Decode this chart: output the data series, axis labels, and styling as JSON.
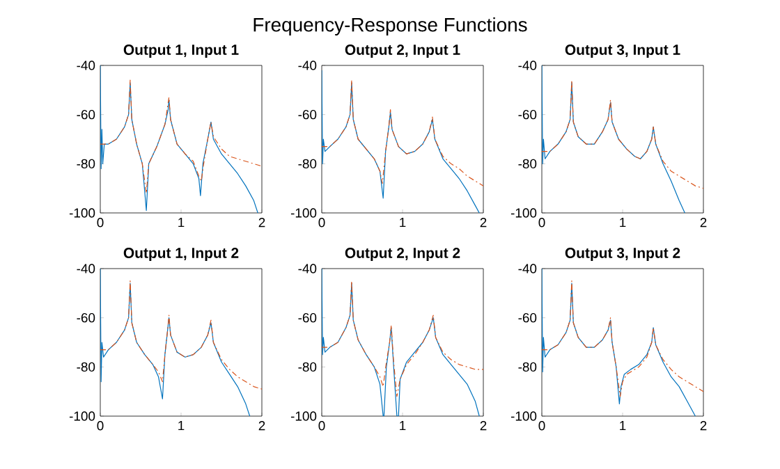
{
  "chart_data": [
    {
      "type": "line",
      "title": "Output 1, Input 1",
      "annotations": [
        "Frequency-Response Functions"
      ],
      "xlim": [
        0,
        2
      ],
      "ylim": [
        -100,
        -40
      ],
      "xticks": [
        0,
        1,
        2
      ],
      "yticks": [
        -100,
        -80,
        -60,
        -40
      ],
      "series": [
        {
          "color": "#0072bd",
          "line_style": "solid",
          "x": [
            0,
            0.01,
            0.02,
            0.03,
            0.05,
            0.1,
            0.2,
            0.3,
            0.35,
            0.37,
            0.39,
            0.45,
            0.52,
            0.57,
            0.6,
            0.7,
            0.8,
            0.84,
            0.85,
            0.87,
            0.95,
            1.05,
            1.15,
            1.22,
            1.24,
            1.27,
            1.33,
            1.37,
            1.4,
            1.5,
            1.6,
            1.7,
            1.8,
            1.9,
            1.95
          ],
          "values": [
            -40,
            -82,
            -66,
            -80,
            -72,
            -72,
            -70,
            -65,
            -60,
            -47,
            -62,
            -72,
            -80,
            -99,
            -80,
            -73,
            -64,
            -58,
            -54,
            -62,
            -72,
            -76,
            -80,
            -86,
            -93,
            -80,
            -70,
            -63,
            -70,
            -76,
            -80,
            -84,
            -89,
            -95,
            -100
          ]
        },
        {
          "color": "#d95319",
          "line_style": "dashed",
          "x": [
            0,
            0.1,
            0.2,
            0.3,
            0.35,
            0.37,
            0.39,
            0.45,
            0.52,
            0.57,
            0.6,
            0.7,
            0.8,
            0.85,
            0.87,
            0.95,
            1.05,
            1.15,
            1.22,
            1.25,
            1.28,
            1.33,
            1.37,
            1.4,
            1.5,
            1.6,
            1.7,
            1.8,
            1.9,
            2.0
          ],
          "values": [
            -72,
            -72,
            -70,
            -65,
            -60,
            -46,
            -62,
            -72,
            -80,
            -92,
            -80,
            -73,
            -64,
            -53,
            -62,
            -72,
            -76,
            -79,
            -85,
            -87,
            -80,
            -70,
            -63,
            -69,
            -74,
            -77,
            -78,
            -79,
            -80,
            -81
          ]
        }
      ]
    },
    {
      "type": "line",
      "title": "Output 2, Input 1",
      "xlim": [
        0,
        2
      ],
      "ylim": [
        -100,
        -40
      ],
      "xticks": [
        0,
        1,
        2
      ],
      "yticks": [
        -100,
        -80,
        -60,
        -40
      ],
      "series": [
        {
          "color": "#0072bd",
          "line_style": "solid",
          "x": [
            0,
            0.01,
            0.02,
            0.04,
            0.1,
            0.2,
            0.3,
            0.35,
            0.37,
            0.39,
            0.45,
            0.55,
            0.65,
            0.72,
            0.76,
            0.79,
            0.83,
            0.85,
            0.87,
            0.95,
            1.05,
            1.15,
            1.25,
            1.33,
            1.37,
            1.4,
            1.5,
            1.6,
            1.7,
            1.8,
            1.9,
            1.95
          ],
          "values": [
            -42,
            -80,
            -70,
            -75,
            -73,
            -70,
            -65,
            -60,
            -47,
            -62,
            -70,
            -74,
            -78,
            -83,
            -94,
            -75,
            -65,
            -59,
            -66,
            -73,
            -76,
            -75,
            -72,
            -67,
            -62,
            -70,
            -78,
            -82,
            -86,
            -91,
            -97,
            -100
          ]
        },
        {
          "color": "#d95319",
          "line_style": "dashed",
          "x": [
            0,
            0.1,
            0.2,
            0.3,
            0.35,
            0.37,
            0.39,
            0.45,
            0.55,
            0.65,
            0.72,
            0.75,
            0.79,
            0.83,
            0.85,
            0.87,
            0.95,
            1.05,
            1.15,
            1.25,
            1.33,
            1.37,
            1.4,
            1.5,
            1.6,
            1.7,
            1.8,
            1.9,
            2.0
          ],
          "values": [
            -73,
            -73,
            -70,
            -65,
            -60,
            -46,
            -62,
            -70,
            -74,
            -78,
            -83,
            -88,
            -75,
            -65,
            -58,
            -66,
            -73,
            -76,
            -75,
            -72,
            -67,
            -61,
            -70,
            -77,
            -80,
            -82,
            -85,
            -87,
            -89
          ]
        }
      ]
    },
    {
      "type": "line",
      "title": "Output 3, Input 1",
      "xlim": [
        0,
        2
      ],
      "ylim": [
        -100,
        -40
      ],
      "xticks": [
        0,
        1,
        2
      ],
      "yticks": [
        -100,
        -80,
        -60,
        -40
      ],
      "series": [
        {
          "color": "#0072bd",
          "line_style": "solid",
          "x": [
            0,
            0.01,
            0.02,
            0.04,
            0.1,
            0.2,
            0.3,
            0.35,
            0.37,
            0.39,
            0.45,
            0.55,
            0.65,
            0.75,
            0.82,
            0.85,
            0.87,
            0.95,
            1.05,
            1.15,
            1.22,
            1.3,
            1.36,
            1.38,
            1.41,
            1.5,
            1.6,
            1.7,
            1.77
          ],
          "values": [
            -40,
            -80,
            -70,
            -78,
            -75,
            -72,
            -67,
            -62,
            -47,
            -63,
            -69,
            -72,
            -72,
            -67,
            -62,
            -55,
            -63,
            -70,
            -74,
            -77,
            -78,
            -75,
            -70,
            -65,
            -72,
            -80,
            -87,
            -95,
            -100
          ]
        },
        {
          "color": "#d95319",
          "line_style": "dashed",
          "x": [
            0,
            0.1,
            0.2,
            0.3,
            0.35,
            0.37,
            0.39,
            0.45,
            0.55,
            0.65,
            0.75,
            0.82,
            0.85,
            0.87,
            0.95,
            1.05,
            1.15,
            1.22,
            1.3,
            1.36,
            1.38,
            1.41,
            1.5,
            1.6,
            1.7,
            1.8,
            1.9,
            2.0
          ],
          "values": [
            -75,
            -75,
            -72,
            -67,
            -62,
            -46,
            -63,
            -69,
            -72,
            -72,
            -67,
            -62,
            -54,
            -63,
            -70,
            -74,
            -77,
            -78,
            -75,
            -70,
            -65,
            -72,
            -79,
            -83,
            -85,
            -87,
            -89,
            -90
          ]
        }
      ]
    },
    {
      "type": "line",
      "title": "Output 1, Input 2",
      "xlim": [
        0,
        2
      ],
      "ylim": [
        -100,
        -40
      ],
      "xticks": [
        0,
        1,
        2
      ],
      "yticks": [
        -100,
        -80,
        -60,
        -40
      ],
      "series": [
        {
          "color": "#0072bd",
          "line_style": "solid",
          "x": [
            0,
            0.01,
            0.02,
            0.04,
            0.1,
            0.2,
            0.3,
            0.35,
            0.37,
            0.39,
            0.45,
            0.55,
            0.65,
            0.72,
            0.77,
            0.8,
            0.83,
            0.85,
            0.87,
            0.95,
            1.05,
            1.15,
            1.25,
            1.33,
            1.37,
            1.4,
            1.5,
            1.6,
            1.7,
            1.8,
            1.85
          ],
          "values": [
            -40,
            -86,
            -70,
            -76,
            -73,
            -70,
            -65,
            -60,
            -46,
            -62,
            -70,
            -75,
            -79,
            -84,
            -93,
            -75,
            -66,
            -60,
            -67,
            -74,
            -76,
            -75,
            -72,
            -67,
            -62,
            -70,
            -78,
            -83,
            -88,
            -95,
            -100
          ]
        },
        {
          "color": "#d95319",
          "line_style": "dashed",
          "x": [
            0,
            0.1,
            0.2,
            0.3,
            0.35,
            0.37,
            0.39,
            0.45,
            0.55,
            0.65,
            0.72,
            0.77,
            0.8,
            0.83,
            0.85,
            0.87,
            0.95,
            1.05,
            1.15,
            1.25,
            1.33,
            1.37,
            1.4,
            1.5,
            1.6,
            1.7,
            1.8,
            1.9,
            2.0
          ],
          "values": [
            -73,
            -73,
            -70,
            -65,
            -60,
            -45,
            -62,
            -70,
            -75,
            -79,
            -82,
            -86,
            -75,
            -66,
            -59,
            -67,
            -74,
            -76,
            -75,
            -72,
            -67,
            -61,
            -70,
            -77,
            -81,
            -84,
            -86,
            -88,
            -89
          ]
        }
      ]
    },
    {
      "type": "line",
      "title": "Output 2, Input 2",
      "xlim": [
        0,
        2
      ],
      "ylim": [
        -100,
        -40
      ],
      "xticks": [
        0,
        1,
        2
      ],
      "yticks": [
        -100,
        -80,
        -60,
        -40
      ],
      "series": [
        {
          "color": "#0072bd",
          "line_style": "solid",
          "x": [
            0,
            0.01,
            0.02,
            0.04,
            0.1,
            0.2,
            0.3,
            0.35,
            0.37,
            0.39,
            0.45,
            0.55,
            0.65,
            0.72,
            0.76,
            0.77,
            0.8,
            0.84,
            0.86,
            0.89,
            0.93,
            0.95,
            0.97,
            1.05,
            1.15,
            1.25,
            1.33,
            1.38,
            1.41,
            1.5,
            1.6,
            1.7,
            1.8,
            1.9,
            1.95
          ],
          "values": [
            -40,
            -75,
            -68,
            -74,
            -72,
            -70,
            -64,
            -59,
            -46,
            -61,
            -69,
            -75,
            -80,
            -87,
            -100,
            -100,
            -80,
            -70,
            -64,
            -80,
            -100,
            -100,
            -85,
            -78,
            -74,
            -70,
            -65,
            -60,
            -68,
            -75,
            -79,
            -83,
            -87,
            -94,
            -100
          ]
        },
        {
          "color": "#d95319",
          "line_style": "dashed",
          "x": [
            0,
            0.1,
            0.2,
            0.3,
            0.35,
            0.37,
            0.39,
            0.45,
            0.55,
            0.65,
            0.72,
            0.76,
            0.8,
            0.84,
            0.86,
            0.89,
            0.93,
            0.97,
            1.05,
            1.15,
            1.25,
            1.33,
            1.38,
            1.41,
            1.5,
            1.6,
            1.7,
            1.8,
            1.9,
            2.0
          ],
          "values": [
            -72,
            -72,
            -70,
            -64,
            -59,
            -45,
            -61,
            -69,
            -75,
            -80,
            -84,
            -88,
            -78,
            -70,
            -63,
            -78,
            -92,
            -85,
            -79,
            -75,
            -70,
            -65,
            -59,
            -68,
            -74,
            -77,
            -79,
            -80,
            -81,
            -81
          ]
        }
      ]
    },
    {
      "type": "line",
      "title": "Output 3, Input 2",
      "xlim": [
        0,
        2
      ],
      "ylim": [
        -100,
        -40
      ],
      "xticks": [
        0,
        1,
        2
      ],
      "yticks": [
        -100,
        -80,
        -60,
        -40
      ],
      "series": [
        {
          "color": "#0072bd",
          "line_style": "solid",
          "x": [
            0,
            0.01,
            0.02,
            0.04,
            0.1,
            0.2,
            0.3,
            0.35,
            0.37,
            0.39,
            0.45,
            0.55,
            0.65,
            0.75,
            0.82,
            0.85,
            0.87,
            0.92,
            0.96,
            0.98,
            1.02,
            1.1,
            1.2,
            1.3,
            1.36,
            1.38,
            1.41,
            1.5,
            1.6,
            1.7,
            1.8,
            1.9
          ],
          "values": [
            -40,
            -82,
            -68,
            -76,
            -73,
            -71,
            -66,
            -61,
            -46,
            -62,
            -68,
            -72,
            -72,
            -69,
            -65,
            -61,
            -70,
            -80,
            -95,
            -88,
            -83,
            -81,
            -79,
            -75,
            -70,
            -64,
            -71,
            -78,
            -84,
            -88,
            -94,
            -100
          ]
        },
        {
          "color": "#d95319",
          "line_style": "dashed",
          "x": [
            0,
            0.1,
            0.2,
            0.3,
            0.35,
            0.37,
            0.39,
            0.45,
            0.55,
            0.65,
            0.75,
            0.82,
            0.85,
            0.87,
            0.92,
            0.97,
            1.0,
            1.05,
            1.1,
            1.2,
            1.3,
            1.36,
            1.38,
            1.41,
            1.5,
            1.6,
            1.7,
            1.8,
            1.9,
            2.0
          ],
          "values": [
            -73,
            -73,
            -71,
            -66,
            -61,
            -45,
            -62,
            -68,
            -72,
            -72,
            -69,
            -65,
            -60,
            -70,
            -80,
            -92,
            -86,
            -83,
            -82,
            -80,
            -76,
            -70,
            -64,
            -71,
            -77,
            -81,
            -84,
            -86,
            -88,
            -90
          ]
        }
      ]
    }
  ]
}
